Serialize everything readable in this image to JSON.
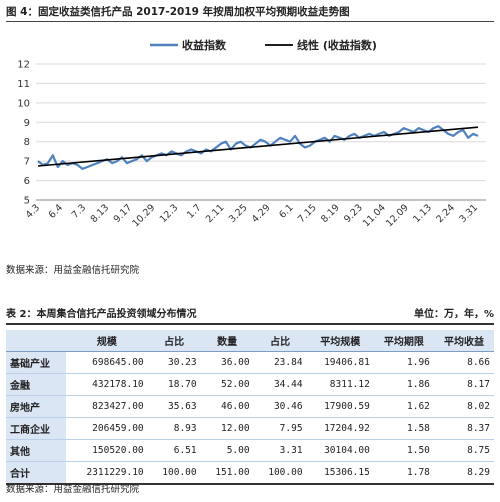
{
  "figure": {
    "title": "图 4：固定收益类信托产品 2017-2019 年按周加权平均预期收益走势图",
    "source": "数据来源：用益金融信托研究院"
  },
  "chart_data": {
    "type": "line",
    "legend": [
      "收益指数",
      "线性 (收益指数)"
    ],
    "legend_position": "top",
    "ylim": [
      5,
      12
    ],
    "yticks": [
      5,
      6,
      7,
      8,
      9,
      10,
      11,
      12
    ],
    "xtick_labels": [
      "4.3",
      "6.4",
      "7.3",
      "8.13",
      "9.17",
      "10.29",
      "12.3",
      "1.7",
      "2.11",
      "3.25",
      "4.29",
      "6.1",
      "7.15",
      "8.19",
      "9.23",
      "11.04",
      "12.09",
      "1.13",
      "2.24",
      "3.31"
    ],
    "grid": true,
    "series": [
      {
        "name": "收益指数",
        "color": "#4f81bd",
        "values": [
          7.0,
          6.8,
          6.9,
          7.3,
          6.7,
          7.0,
          6.8,
          6.9,
          6.8,
          6.6,
          6.7,
          6.8,
          6.9,
          7.0,
          7.1,
          6.9,
          7.0,
          7.2,
          6.9,
          7.0,
          7.1,
          7.3,
          7.0,
          7.2,
          7.3,
          7.4,
          7.3,
          7.5,
          7.4,
          7.3,
          7.5,
          7.6,
          7.5,
          7.4,
          7.6,
          7.5,
          7.7,
          7.9,
          8.0,
          7.6,
          7.9,
          8.0,
          7.8,
          7.7,
          7.9,
          8.1,
          8.0,
          7.8,
          8.0,
          8.2,
          8.1,
          8.0,
          8.3,
          7.9,
          7.7,
          7.8,
          8.0,
          8.1,
          8.2,
          8.0,
          8.3,
          8.2,
          8.1,
          8.3,
          8.4,
          8.2,
          8.3,
          8.4,
          8.3,
          8.4,
          8.5,
          8.3,
          8.4,
          8.5,
          8.7,
          8.6,
          8.5,
          8.7,
          8.6,
          8.5,
          8.7,
          8.8,
          8.6,
          8.4,
          8.3,
          8.5,
          8.6,
          8.2,
          8.4,
          8.3
        ]
      },
      {
        "name": "线性 (收益指数)",
        "color": "#000000",
        "values_from_to": [
          6.75,
          8.75
        ]
      }
    ]
  },
  "table": {
    "title": "表 2：本周集合信托产品投资领域分布情况",
    "unit": "单位：万，年，%",
    "headers": [
      "",
      "规模",
      "占比",
      "数量",
      "占比",
      "平均规模",
      "平均期限",
      "平均收益"
    ],
    "rows": [
      [
        "基础产业",
        "698645.00",
        "30.23",
        "36.00",
        "23.84",
        "19406.81",
        "1.96",
        "8.66"
      ],
      [
        "金融",
        "432178.10",
        "18.70",
        "52.00",
        "34.44",
        "8311.12",
        "1.86",
        "8.17"
      ],
      [
        "房地产",
        "823427.00",
        "35.63",
        "46.00",
        "30.46",
        "17900.59",
        "1.62",
        "8.02"
      ],
      [
        "工商企业",
        "206459.00",
        "8.93",
        "12.00",
        "7.95",
        "17204.92",
        "1.58",
        "8.37"
      ],
      [
        "其他",
        "150520.00",
        "6.51",
        "5.00",
        "3.31",
        "30104.00",
        "1.50",
        "8.75"
      ],
      [
        "合计",
        "2311229.10",
        "100.00",
        "151.00",
        "100.00",
        "15306.15",
        "1.78",
        "8.29"
      ]
    ],
    "source": "数据来源：用益金融信托研究院"
  }
}
